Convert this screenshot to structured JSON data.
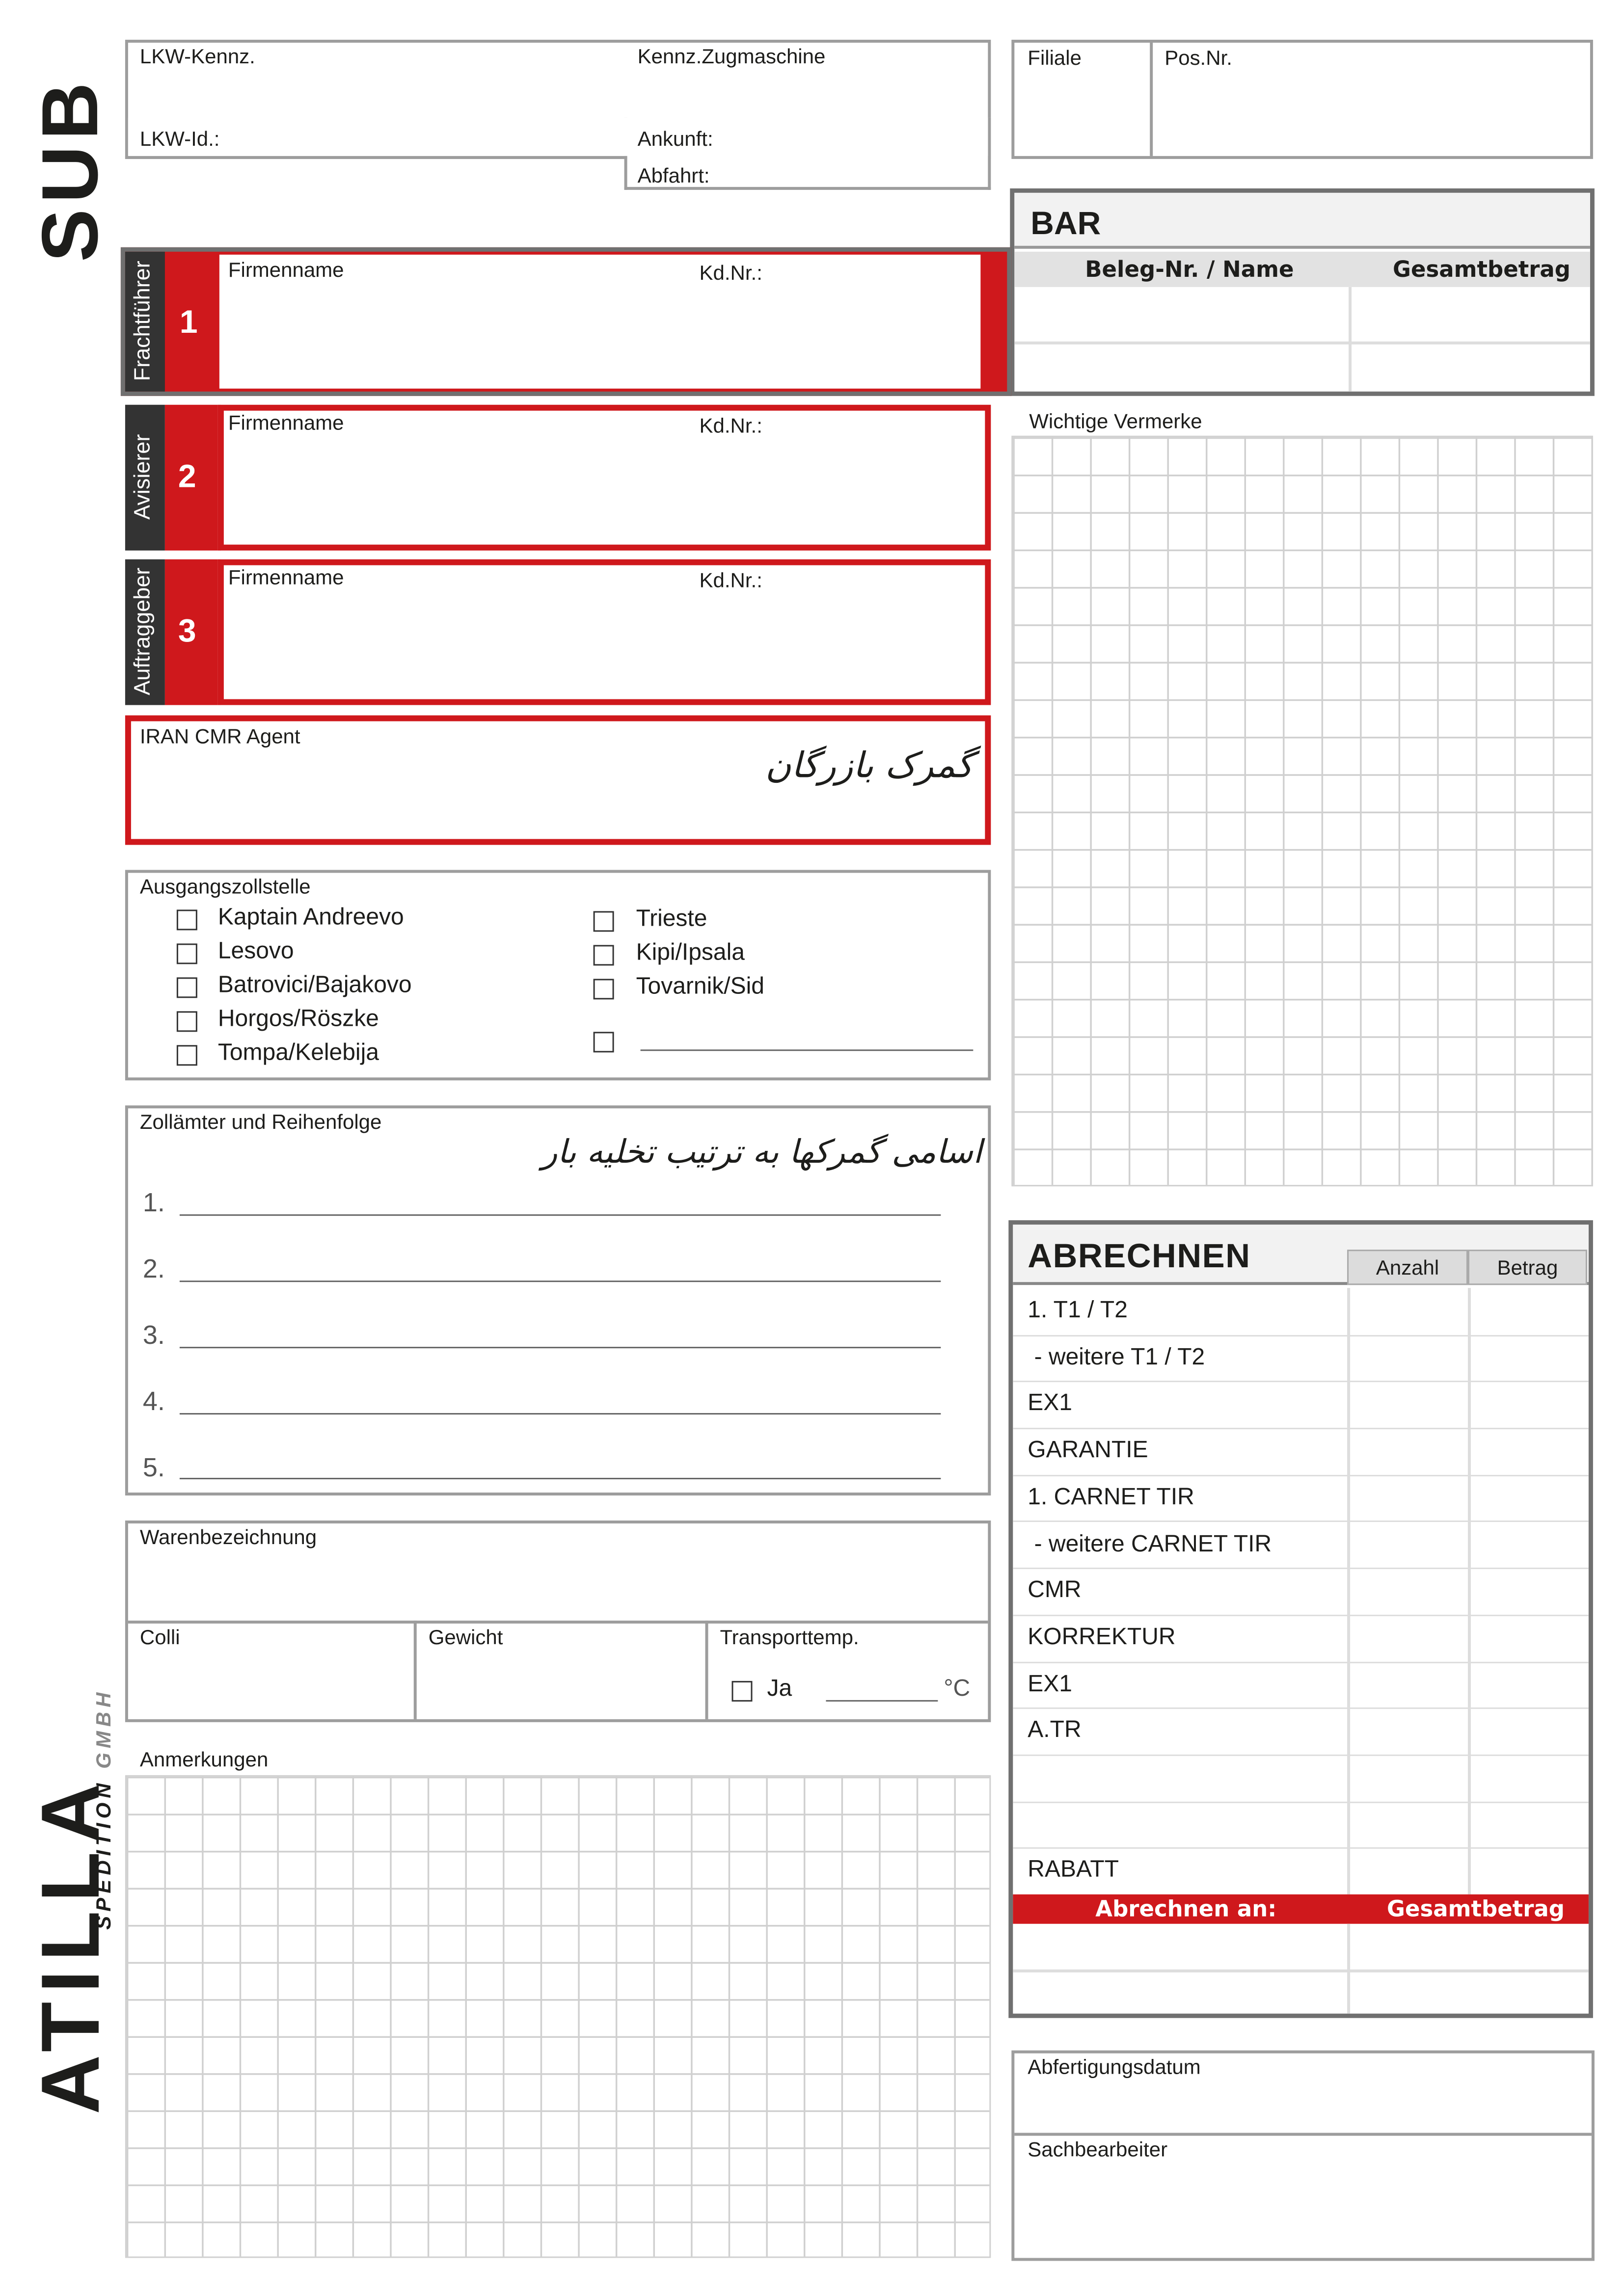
{
  "side": {
    "sub": "SUB",
    "logo_main": "ATILLA",
    "logo_sub": "SPEDITION",
    "logo_gmbh": "GMBH"
  },
  "header": {
    "lkw_kennz": "LKW-Kennz.",
    "kennz_zug": "Kennz.Zugmaschine",
    "lkw_id": "LKW-Id.:",
    "ankunft": "Ankunft:",
    "abfahrt": "Abfahrt:",
    "filiale": "Filiale",
    "pos_nr": "Pos.Nr."
  },
  "bar": {
    "title": "BAR",
    "col1": "Beleg-Nr. / Name",
    "col2": "Gesamtbetrag"
  },
  "parties": [
    {
      "role": "Frachtführer",
      "number": "1",
      "firm": "Firmenname",
      "kdnr": "Kd.Nr.:"
    },
    {
      "role": "Avisierer",
      "number": "2",
      "firm": "Firmenname",
      "kdnr": "Kd.Nr.:"
    },
    {
      "role": "Auftraggeber",
      "number": "3",
      "firm": "Firmenname",
      "kdnr": "Kd.Nr.:"
    }
  ],
  "agent": {
    "label": "IRAN CMR Agent",
    "handwritten": "گمرک بازرگان"
  },
  "ausgang": {
    "title": "Ausgangszollstelle",
    "left": [
      "Kaptain Andreevo",
      "Lesovo",
      "Batrovici/Bajakovo",
      "Horgos/Röszke",
      "Tompa/Kelebija"
    ],
    "right": [
      "Trieste",
      "Kipi/Ipsala",
      "Tovarnik/Sid"
    ]
  },
  "zoll": {
    "title": "Zollämter und Reihenfolge",
    "handwritten": "اسامی گمرکها به ترتیب تخلیه بار",
    "items": [
      "1.",
      "2.",
      "3.",
      "4.",
      "5."
    ]
  },
  "ware": {
    "title": "Warenbezeichnung",
    "colli": "Colli",
    "gewicht": "Gewicht",
    "temp": "Transporttemp.",
    "ja": "Ja",
    "unit": "°C"
  },
  "anmerkungen": "Anmerkungen",
  "vermerke": "Wichtige Vermerke",
  "abrechnen": {
    "title": "ABRECHNEN",
    "col_anzahl": "Anzahl",
    "col_betrag": "Betrag",
    "rows": [
      "1. T1 / T2",
      " - weitere T1 / T2",
      "EX1",
      "GARANTIE",
      "1. CARNET TIR",
      " - weitere CARNET TIR",
      "CMR",
      "KORREKTUR",
      "EX1",
      "A.TR",
      "",
      "",
      "RABATT"
    ],
    "footer_left": "Abrechnen an:",
    "footer_right": "Gesamtbetrag"
  },
  "final": {
    "datum": "Abfertigungsdatum",
    "sachbearbeiter": "Sachbearbeiter"
  },
  "colors": {
    "red": "#cf181c",
    "dark": "#333333",
    "gray_border": "#707070"
  }
}
